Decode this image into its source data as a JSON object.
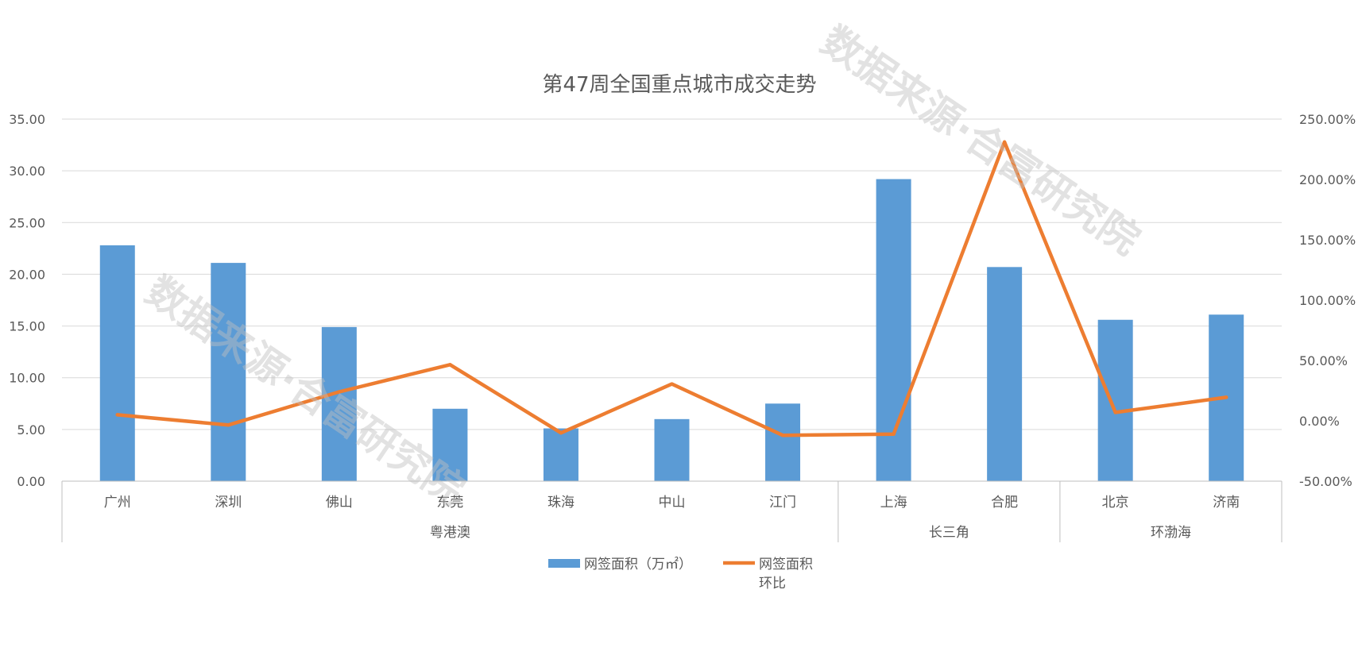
{
  "chart_data": {
    "type": "bar",
    "title": "第47周全国重点城市成交走势",
    "categories": [
      "广州",
      "深圳",
      "佛山",
      "东莞",
      "珠海",
      "中山",
      "江门",
      "上海",
      "合肥",
      "北京",
      "济南"
    ],
    "groups": [
      {
        "name": "粤港澳",
        "count": 7
      },
      {
        "name": "长三角",
        "count": 2
      },
      {
        "name": "环渤海",
        "count": 2
      }
    ],
    "series": [
      {
        "name": "网签面积（万㎡）",
        "type": "bar",
        "axis": "left",
        "color": "#5B9BD5",
        "values": [
          22.8,
          21.1,
          14.9,
          7.0,
          5.1,
          6.0,
          7.5,
          29.2,
          20.7,
          15.6,
          16.1
        ]
      },
      {
        "name": "网签面积环比",
        "name_lines": [
          "网签面积",
          "环比"
        ],
        "type": "line",
        "axis": "right",
        "color": "#ED7D31",
        "values": [
          5.0,
          -3.5,
          24.0,
          46.5,
          -10.0,
          30.5,
          -12.0,
          -11.0,
          231.0,
          7.0,
          19.5
        ]
      }
    ],
    "y_left": {
      "min": 0,
      "max": 35,
      "step": 5,
      "ticks": [
        "0.00",
        "5.00",
        "10.00",
        "15.00",
        "20.00",
        "25.00",
        "30.00",
        "35.00"
      ]
    },
    "y_right": {
      "min": -50,
      "max": 250,
      "step": 50,
      "ticks": [
        "-50.00%",
        "0.00%",
        "50.00%",
        "100.00%",
        "150.00%",
        "200.00%",
        "250.00%"
      ]
    },
    "grid": true,
    "legend_position": "bottom"
  },
  "watermark": {
    "line1": "数据来源：合富研究院",
    "text": "数据来源·合富研究院"
  }
}
